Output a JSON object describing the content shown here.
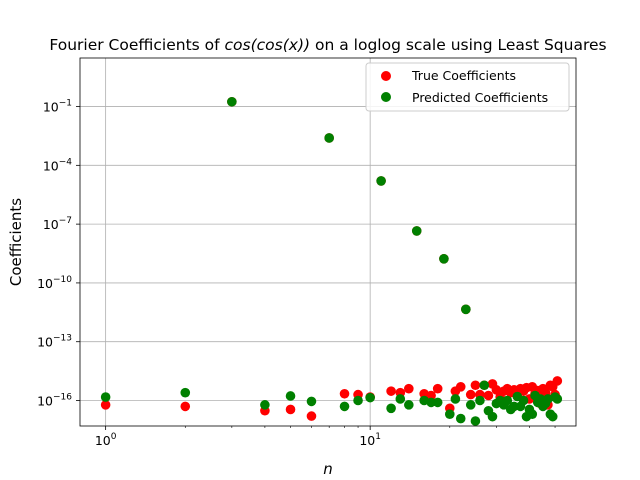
{
  "chart_data": {
    "type": "scatter",
    "title": "Fourier Coefficients of cos(cos(x)) on a loglog scale using Least Squares",
    "title_parts": {
      "prefix": "Fourier Coefficients of ",
      "math": "cos(cos(x))",
      "suffix": " on a loglog scale using Least Squares"
    },
    "xlabel": "n",
    "ylabel": "Coefficients",
    "xscale": "log",
    "yscale": "log",
    "xlim": [
      0.8,
      60
    ],
    "ylim": [
      5e-18,
      30
    ],
    "grid": true,
    "legend_position": "upper right",
    "x_ticks": [
      {
        "value": 1,
        "base": "10",
        "exp": "0"
      },
      {
        "value": 10,
        "base": "10",
        "exp": "1"
      }
    ],
    "y_ticks": [
      {
        "value": 1e-16,
        "base": "10",
        "exp": "−16"
      },
      {
        "value": 1e-13,
        "base": "10",
        "exp": "−13"
      },
      {
        "value": 1e-10,
        "base": "10",
        "exp": "−10"
      },
      {
        "value": 1e-07,
        "base": "10",
        "exp": "−7"
      },
      {
        "value": 0.0001,
        "base": "10",
        "exp": "−4"
      },
      {
        "value": 0.1,
        "base": "10",
        "exp": "−1"
      }
    ],
    "series": [
      {
        "name": "True Coefficients",
        "color": "#ff0000",
        "x": [
          1,
          2,
          3,
          4,
          5,
          6,
          7,
          8,
          9,
          10,
          11,
          12,
          13,
          14,
          15,
          16,
          17,
          18,
          19,
          20,
          21,
          22,
          23,
          24,
          25,
          26,
          27,
          28,
          29,
          30,
          31,
          32,
          33,
          34,
          35,
          36,
          37,
          38,
          39,
          40,
          41,
          42,
          43,
          44,
          45,
          46,
          47,
          48,
          49,
          50,
          51
        ],
        "y": [
          6e-17,
          5e-17,
          0.175,
          3e-17,
          3.5e-17,
          1.6e-17,
          0.0025,
          2.2e-16,
          2e-16,
          1.5e-16,
          1.6e-05,
          3e-16,
          2.5e-16,
          4e-16,
          4.5e-08,
          2.2e-16,
          1.8e-16,
          4e-16,
          1.7e-09,
          4e-17,
          3e-16,
          5e-16,
          4.5e-12,
          2e-16,
          6e-16,
          2e-16,
          6e-16,
          1.8e-16,
          7e-16,
          3.5e-16,
          1.5e-16,
          3e-16,
          4e-16,
          2.5e-16,
          3.5e-16,
          2e-16,
          4e-16,
          3e-16,
          4.5e-16,
          1.2e-16,
          5e-16,
          2.2e-16,
          3.2e-16,
          7e-17,
          4e-16,
          2.5e-16,
          6e-17,
          6e-16,
          5e-16,
          2e-16,
          1e-15
        ]
      },
      {
        "name": "Predicted Coefficients",
        "color": "#008000",
        "x": [
          1,
          2,
          3,
          4,
          5,
          6,
          7,
          8,
          9,
          10,
          11,
          12,
          13,
          14,
          15,
          16,
          17,
          18,
          19,
          20,
          21,
          22,
          23,
          24,
          25,
          26,
          27,
          28,
          29,
          30,
          31,
          32,
          33,
          34,
          35,
          36,
          37,
          38,
          39,
          40,
          41,
          42,
          43,
          44,
          45,
          46,
          47,
          48,
          49,
          50,
          51
        ],
        "y": [
          1.5e-16,
          2.5e-16,
          0.175,
          6e-17,
          1.7e-16,
          9e-17,
          0.0025,
          5e-17,
          1e-16,
          1.4e-16,
          1.6e-05,
          4e-17,
          1.2e-16,
          6e-17,
          4.5e-08,
          1e-16,
          8e-17,
          8e-17,
          1.7e-09,
          2e-17,
          1.2e-16,
          1.2e-17,
          4.5e-12,
          6e-17,
          9e-18,
          1e-16,
          6e-16,
          3e-17,
          1.5e-17,
          7e-17,
          1e-16,
          6e-17,
          1e-16,
          3.5e-17,
          5e-17,
          1.6e-16,
          5e-17,
          1e-16,
          1.5e-17,
          3.5e-17,
          2e-17,
          1.8e-16,
          8e-17,
          1.2e-16,
          5e-17,
          7e-17,
          1.2e-16,
          2e-17,
          1.5e-17,
          1.5e-16,
          1.2e-16
        ]
      }
    ]
  }
}
